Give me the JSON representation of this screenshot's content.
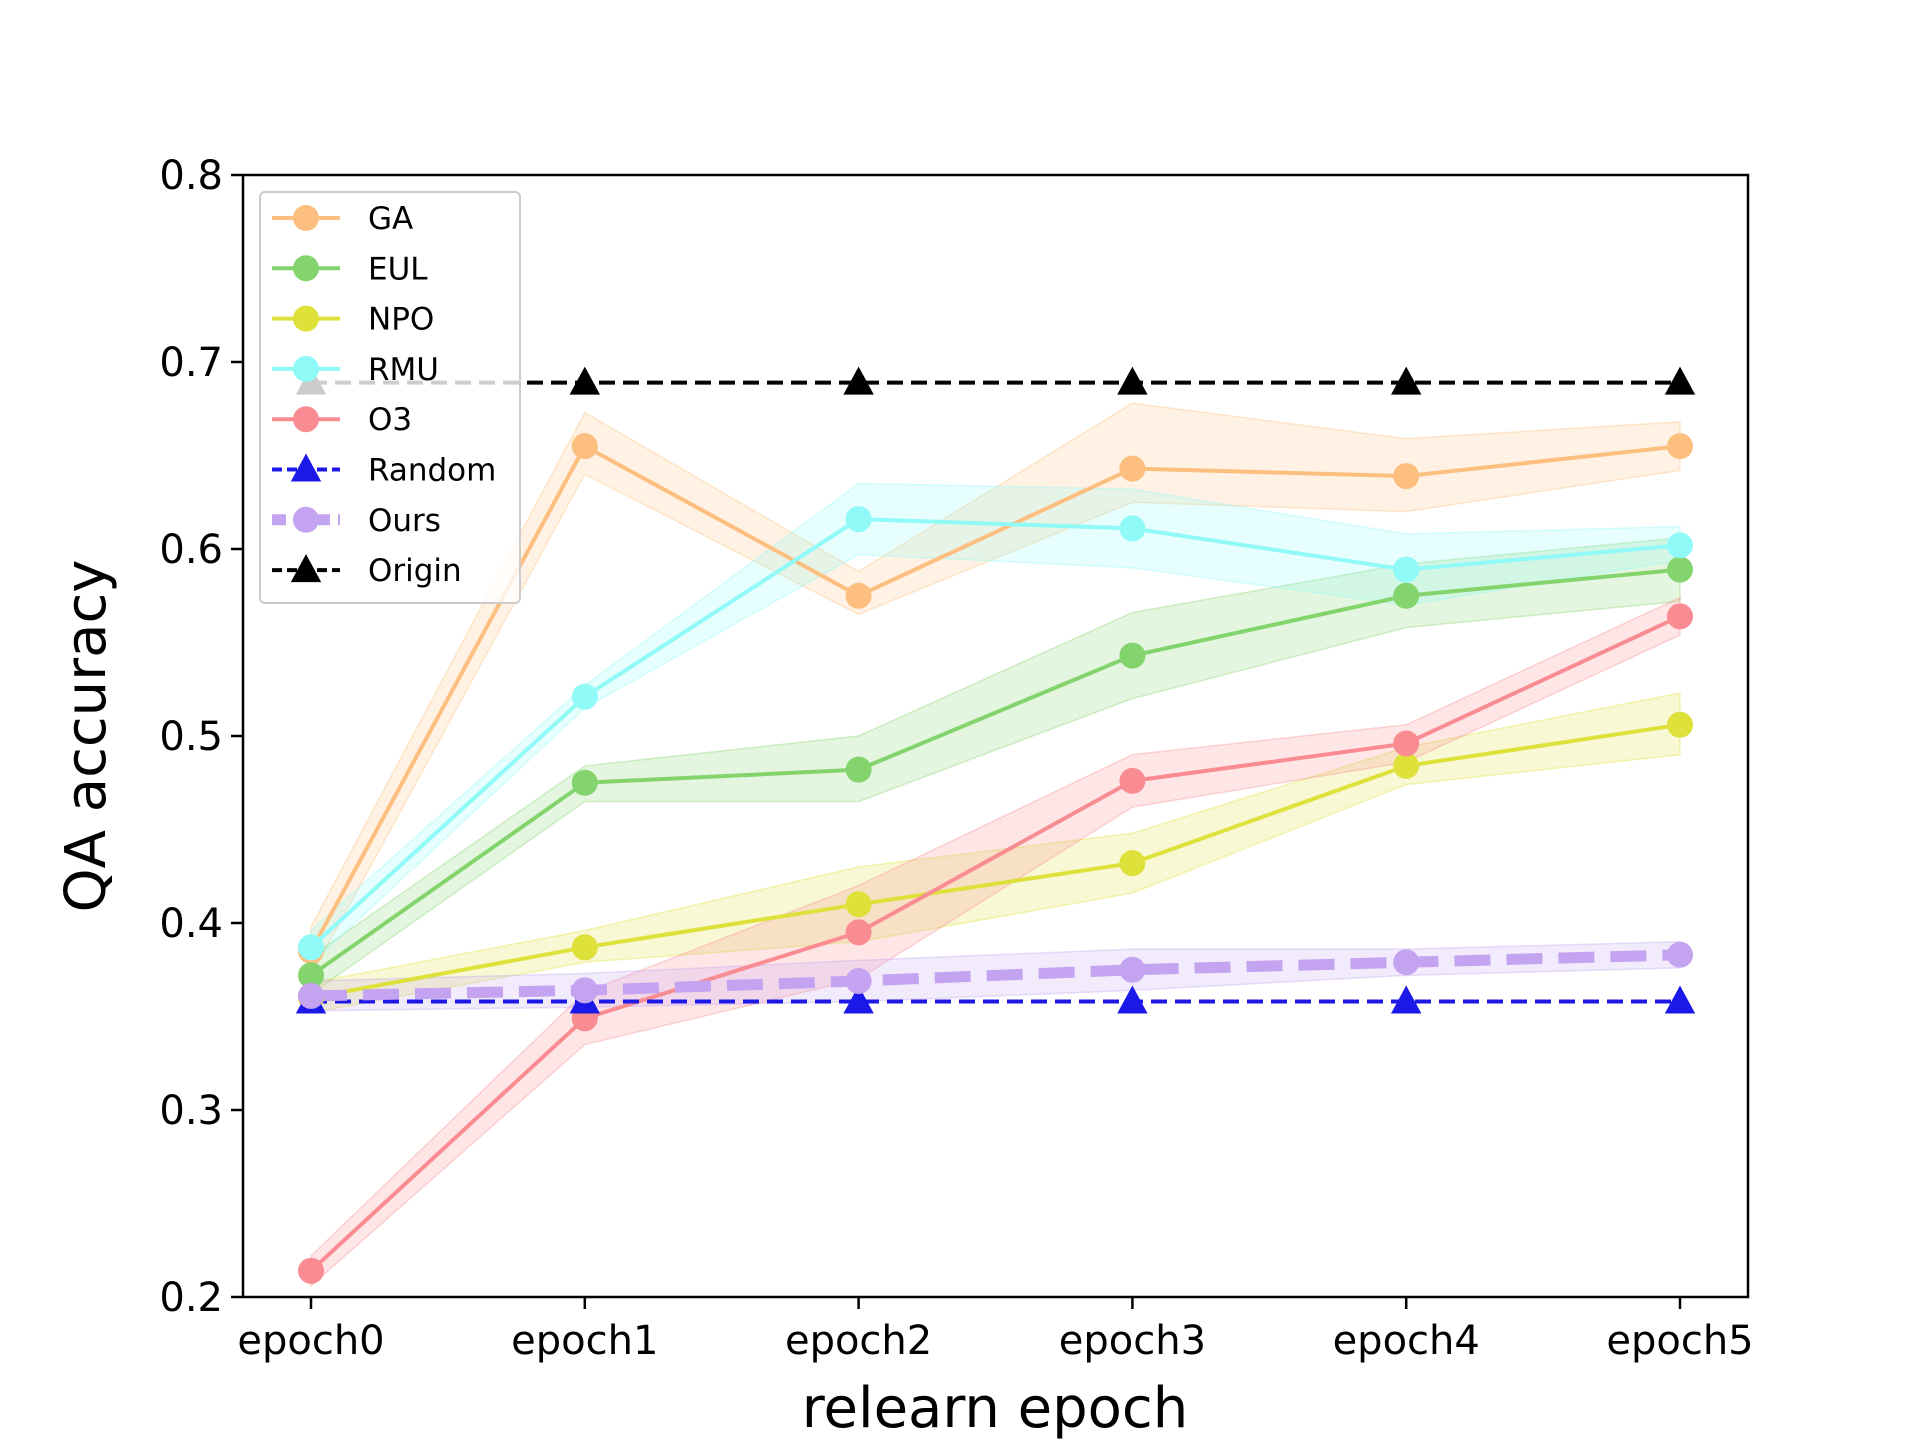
{
  "chart_data": {
    "type": "line",
    "title": "",
    "xlabel": "relearn epoch",
    "ylabel": "QA accuracy",
    "categories": [
      "epoch0",
      "epoch1",
      "epoch2",
      "epoch3",
      "epoch4",
      "epoch5"
    ],
    "ylim": [
      0.2,
      0.8
    ],
    "yticks": [
      0.2,
      0.3,
      0.4,
      0.5,
      0.6,
      0.7,
      0.8
    ],
    "ytick_labels": [
      "0.2",
      "0.3",
      "0.4",
      "0.5",
      "0.6",
      "0.7",
      "0.8"
    ],
    "grid": false,
    "legend_position": "top-left",
    "series": [
      {
        "name": "GA",
        "color": "#fdbf7f",
        "marker": "circle",
        "dashed": false,
        "values": [
          0.385,
          0.655,
          0.575,
          0.643,
          0.639,
          0.655
        ],
        "band_lower": [
          0.372,
          0.64,
          0.565,
          0.625,
          0.62,
          0.642
        ],
        "band_upper": [
          0.398,
          0.673,
          0.588,
          0.678,
          0.659,
          0.668
        ]
      },
      {
        "name": "EUL",
        "color": "#84d46d",
        "marker": "circle",
        "dashed": false,
        "values": [
          0.372,
          0.475,
          0.482,
          0.543,
          0.575,
          0.589
        ],
        "band_lower": [
          0.362,
          0.465,
          0.465,
          0.52,
          0.558,
          0.572
        ],
        "band_upper": [
          0.382,
          0.484,
          0.5,
          0.566,
          0.592,
          0.606
        ]
      },
      {
        "name": "NPO",
        "color": "#dde13a",
        "marker": "circle",
        "dashed": false,
        "values": [
          0.36,
          0.387,
          0.41,
          0.432,
          0.484,
          0.506
        ],
        "band_lower": [
          0.352,
          0.379,
          0.39,
          0.416,
          0.474,
          0.49
        ],
        "band_upper": [
          0.368,
          0.396,
          0.43,
          0.448,
          0.494,
          0.523
        ]
      },
      {
        "name": "RMU",
        "color": "#8ffaf7",
        "marker": "circle",
        "dashed": false,
        "values": [
          0.387,
          0.521,
          0.616,
          0.611,
          0.589,
          0.602
        ],
        "band_lower": [
          0.378,
          0.515,
          0.597,
          0.59,
          0.57,
          0.594
        ],
        "band_upper": [
          0.396,
          0.527,
          0.635,
          0.632,
          0.608,
          0.612
        ]
      },
      {
        "name": "O3",
        "color": "#f98c92",
        "marker": "circle",
        "dashed": false,
        "values": [
          0.214,
          0.349,
          0.395,
          0.476,
          0.496,
          0.564
        ],
        "band_lower": [
          0.206,
          0.335,
          0.37,
          0.462,
          0.486,
          0.554
        ],
        "band_upper": [
          0.222,
          0.363,
          0.42,
          0.49,
          0.506,
          0.574
        ]
      },
      {
        "name": "Random",
        "color": "#1c18e8",
        "marker": "triangle",
        "dashed": true,
        "values": [
          0.358,
          0.358,
          0.358,
          0.358,
          0.358,
          0.358
        ]
      },
      {
        "name": "Ours",
        "color": "#c4a3f0",
        "marker": "circle",
        "dashed": true,
        "thick": true,
        "values": [
          0.361,
          0.364,
          0.369,
          0.375,
          0.379,
          0.383
        ],
        "band_lower": [
          0.353,
          0.355,
          0.358,
          0.364,
          0.372,
          0.376
        ],
        "band_upper": [
          0.369,
          0.373,
          0.38,
          0.386,
          0.386,
          0.39
        ]
      },
      {
        "name": "Origin",
        "color": "#000000",
        "marker": "triangle",
        "dashed": true,
        "values": [
          0.689,
          0.689,
          0.689,
          0.689,
          0.689,
          0.689
        ]
      }
    ]
  }
}
